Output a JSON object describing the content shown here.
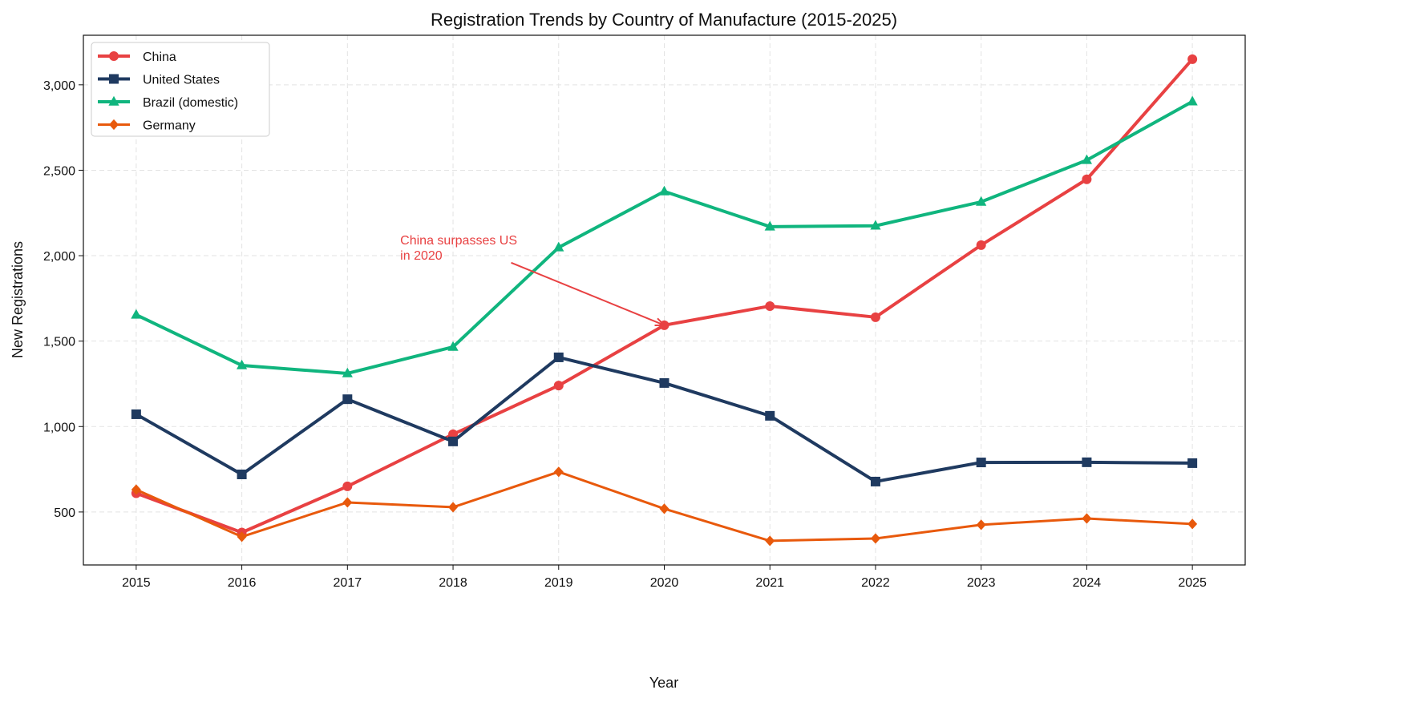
{
  "chart_data": {
    "type": "line",
    "title": "Registration Trends by Country of Manufacture (2015-2025)",
    "xlabel": "Year",
    "ylabel": "New Registrations",
    "x": [
      2015,
      2016,
      2017,
      2018,
      2019,
      2020,
      2021,
      2022,
      2023,
      2024,
      2025
    ],
    "x_tick_labels": [
      "2015",
      "2016",
      "2017",
      "2018",
      "2019",
      "2020",
      "2021",
      "2022",
      "2023",
      "2024",
      "2025"
    ],
    "xlim": [
      2014.5,
      2025.5
    ],
    "ylim": [
      190,
      3290
    ],
    "y_ticks": [
      500,
      1000,
      1500,
      2000,
      2500,
      3000
    ],
    "y_tick_labels": [
      "500",
      "1,000",
      "1,500",
      "2,000",
      "2,500",
      "3,000"
    ],
    "grid": true,
    "legend_position": "top-left",
    "series": [
      {
        "name": "China",
        "color": "#e84142",
        "marker": "circle",
        "values": [
          610,
          380,
          650,
          955,
          1240,
          1593,
          1705,
          1640,
          2062,
          2447,
          3150
        ]
      },
      {
        "name": "United States",
        "color": "#1f3a60",
        "marker": "square",
        "values": [
          1072,
          720,
          1160,
          913,
          1405,
          1255,
          1063,
          678,
          790,
          791,
          786
        ]
      },
      {
        "name": "Brazil (domestic)",
        "color": "#10b57e",
        "marker": "triangle",
        "values": [
          1654,
          1358,
          1311,
          1466,
          2048,
          2376,
          2170,
          2175,
          2315,
          2559,
          2902
        ]
      },
      {
        "name": "Germany",
        "color": "#e8590c",
        "marker": "diamond",
        "values": [
          631,
          355,
          556,
          528,
          735,
          519,
          331,
          345,
          425,
          462,
          430
        ]
      }
    ],
    "annotations": [
      {
        "text_lines": [
          "China surpasses US",
          "in 2020"
        ],
        "color": "#e84142",
        "text_at": [
          2017.5,
          2010
        ],
        "arrow_from": [
          2018.55,
          1959
        ],
        "arrow_to": [
          2020,
          1593
        ]
      }
    ]
  }
}
